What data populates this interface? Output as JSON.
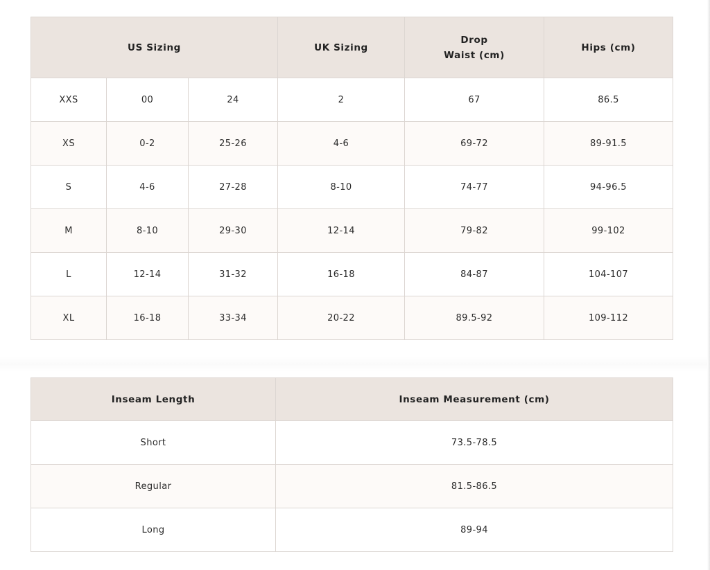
{
  "size_table": {
    "headers": [
      "US Sizing",
      "UK Sizing",
      "Drop",
      "Waist (cm)",
      "Hips (cm)"
    ],
    "rows": [
      [
        "XXS",
        "00",
        "24",
        "2",
        "67",
        "86.5"
      ],
      [
        "XS",
        "0-2",
        "25-26",
        "4-6",
        "69-72",
        "89-91.5"
      ],
      [
        "S",
        "4-6",
        "27-28",
        "8-10",
        "74-77",
        "94-96.5"
      ],
      [
        "M",
        "8-10",
        "29-30",
        "12-14",
        "79-82",
        "99-102"
      ],
      [
        "L",
        "12-14",
        "31-32",
        "16-18",
        "84-87",
        "104-107"
      ],
      [
        "XL",
        "16-18",
        "33-34",
        "20-22",
        "89.5-92",
        "109-112"
      ]
    ]
  },
  "inseam_table": {
    "headers": [
      "Inseam Length",
      "Inseam Measurement (cm)"
    ],
    "rows": [
      [
        "Short",
        "73.5-78.5"
      ],
      [
        "Regular",
        "81.5-86.5"
      ],
      [
        "Long",
        "89-94"
      ]
    ]
  },
  "colors": {
    "header_bg": "#ebe4df",
    "alt_row_bg": "#fdfaf8",
    "border": "#dcd6d2"
  }
}
